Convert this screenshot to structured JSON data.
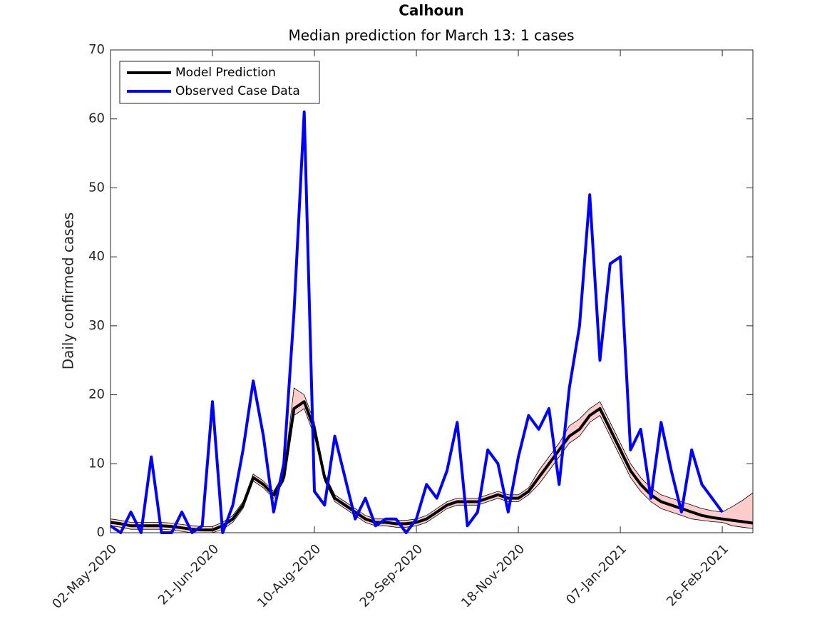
{
  "chart_data": {
    "type": "line",
    "title": "Calhoun",
    "subtitle": "Median prediction for March 13: 1 cases",
    "y_label": "Daily confirmed cases",
    "legend": "upper left",
    "grid": false,
    "x": [
      "2020-05-02",
      "2020-05-07",
      "2020-05-12",
      "2020-05-17",
      "2020-05-22",
      "2020-05-27",
      "2020-06-01",
      "2020-06-06",
      "2020-06-11",
      "2020-06-16",
      "2020-06-21",
      "2020-06-26",
      "2020-07-01",
      "2020-07-06",
      "2020-07-11",
      "2020-07-16",
      "2020-07-21",
      "2020-07-26",
      "2020-07-31",
      "2020-08-05",
      "2020-08-10",
      "2020-08-15",
      "2020-08-20",
      "2020-08-25",
      "2020-08-30",
      "2020-09-04",
      "2020-09-09",
      "2020-09-14",
      "2020-09-19",
      "2020-09-24",
      "2020-09-29",
      "2020-10-04",
      "2020-10-09",
      "2020-10-14",
      "2020-10-19",
      "2020-10-24",
      "2020-10-29",
      "2020-11-03",
      "2020-11-08",
      "2020-11-13",
      "2020-11-18",
      "2020-11-23",
      "2020-11-28",
      "2020-12-03",
      "2020-12-08",
      "2020-12-13",
      "2020-12-18",
      "2020-12-23",
      "2020-12-28",
      "2021-01-02",
      "2021-01-07",
      "2021-01-12",
      "2021-01-17",
      "2021-01-22",
      "2021-01-27",
      "2021-02-01",
      "2021-02-06",
      "2021-02-11",
      "2021-02-16",
      "2021-02-21",
      "2021-02-26",
      "2021-03-03",
      "2021-03-08",
      "2021-03-13"
    ],
    "xlim": [
      "2020-05-02",
      "2021-03-13"
    ],
    "xticks": [
      {
        "value": "2020-05-02",
        "label": "02-May-2020"
      },
      {
        "value": "2020-06-21",
        "label": "21-Jun-2020"
      },
      {
        "value": "2020-08-10",
        "label": "10-Aug-2020"
      },
      {
        "value": "2020-09-29",
        "label": "29-Sep-2020"
      },
      {
        "value": "2020-11-18",
        "label": "18-Nov-2020"
      },
      {
        "value": "2021-01-07",
        "label": "07-Jan-2021"
      },
      {
        "value": "2021-02-26",
        "label": "26-Feb-2021"
      }
    ],
    "ylim": [
      0,
      70
    ],
    "yticks": [
      0,
      10,
      20,
      30,
      40,
      50,
      60,
      70
    ],
    "band": {
      "color": "#ffcccc",
      "upper": [
        2,
        1.8,
        1.5,
        1.5,
        1.5,
        1.5,
        1.4,
        1.2,
        1,
        0.9,
        0.9,
        1.5,
        2.5,
        4.5,
        8.5,
        7.5,
        6,
        8.5,
        21,
        20,
        16,
        8.5,
        5.5,
        4.5,
        3.5,
        2.5,
        2,
        2,
        1.8,
        1.8,
        2,
        2.5,
        3.5,
        4.5,
        5,
        5,
        5,
        5.5,
        6,
        5.5,
        5.5,
        6.5,
        9,
        11,
        13,
        15.5,
        16.5,
        18,
        19,
        16,
        13,
        10,
        8,
        6.5,
        5.5,
        5,
        4.5,
        4,
        3.5,
        3.2,
        3,
        3.8,
        4.7,
        5.8
      ],
      "lower": [
        1,
        0.8,
        0.5,
        0.5,
        0.5,
        0.5,
        0.4,
        0.2,
        0,
        0,
        0,
        0.5,
        1.5,
        3.5,
        7.5,
        6.5,
        5,
        7.5,
        17,
        18,
        14,
        7.5,
        4.5,
        3.5,
        2.5,
        1.5,
        1,
        1,
        0.8,
        0.8,
        1,
        1.5,
        2.5,
        3.5,
        4,
        4,
        4,
        4.5,
        5,
        4.5,
        4.5,
        5.5,
        7,
        9,
        11,
        13,
        14,
        16,
        17,
        14,
        11,
        8,
        6,
        4.5,
        3.5,
        3,
        2.5,
        2,
        1.8,
        1.6,
        1.5,
        1,
        0.8,
        0.6
      ]
    },
    "series": [
      {
        "name": "Model Prediction",
        "color": "#000000",
        "values": [
          1.5,
          1.3,
          1.0,
          1.0,
          1.0,
          1.0,
          0.9,
          0.7,
          0.5,
          0.4,
          0.4,
          1.0,
          2.0,
          4.0,
          8.0,
          7.0,
          5.5,
          8.0,
          18,
          19,
          15,
          8,
          5,
          4,
          3,
          2,
          1.5,
          1.5,
          1.3,
          1.3,
          1.5,
          2,
          3,
          4,
          4.5,
          4.5,
          4.5,
          5,
          5.5,
          5,
          5,
          6,
          8,
          10,
          12,
          14,
          15,
          17,
          18,
          15,
          12,
          9,
          7,
          5.5,
          4.5,
          4,
          3.5,
          3,
          2.5,
          2.2,
          2,
          1.8,
          1.6,
          1.4
        ]
      },
      {
        "name": "Observed Case Data",
        "color": "#0000ff",
        "values": [
          1,
          0,
          3,
          0,
          11,
          0,
          0,
          3,
          0,
          1,
          19,
          0,
          4,
          12,
          22,
          14,
          3,
          10,
          32,
          61,
          6,
          4,
          14,
          8,
          2,
          5,
          1,
          2,
          2,
          0,
          2,
          7,
          5,
          9,
          16,
          1,
          3,
          12,
          10,
          3,
          11,
          17,
          15,
          18,
          7,
          21,
          30,
          49,
          25,
          39,
          40,
          12,
          15,
          5,
          16,
          9,
          3,
          12,
          7,
          5,
          3,
          null,
          null,
          null
        ]
      }
    ]
  }
}
